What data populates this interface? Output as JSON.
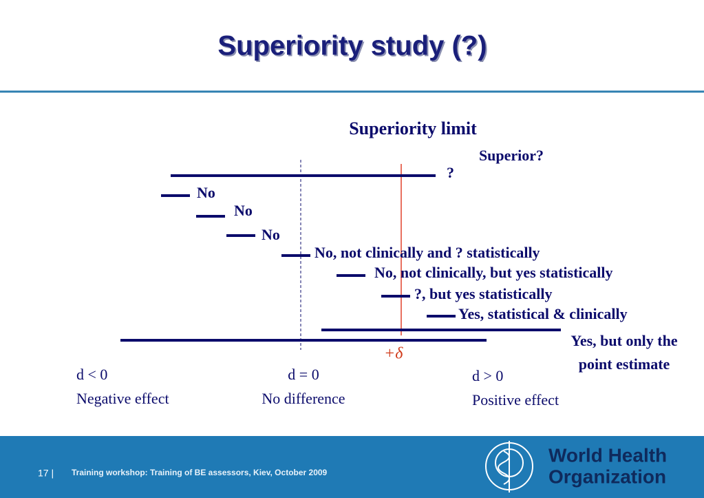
{
  "header": {
    "title": "Superiority study (?)"
  },
  "diagram": {
    "limit_label": "Superiority limit",
    "superior_label": "Superior?",
    "delta_label": "+δ",
    "rows": [
      "?",
      "No",
      "No",
      "No",
      "No, not clinically and ? statistically",
      "No, not clinically, but yes statistically",
      "?, but yes statistically",
      "Yes, statistical & clinically",
      [
        "Yes, but only the",
        "point estimate"
      ]
    ]
  },
  "axis": {
    "left": {
      "symbol": "d < 0",
      "meaning": "Negative effect"
    },
    "middle": {
      "symbol": "d = 0",
      "meaning": "No difference"
    },
    "right": {
      "symbol": "d > 0",
      "meaning": "Positive effect"
    }
  },
  "footer": {
    "page_label": "17 |",
    "text": "Training workshop: Training of BE assessors, Kiev, October 2009",
    "logo": [
      "World Health",
      "Organization"
    ]
  }
}
